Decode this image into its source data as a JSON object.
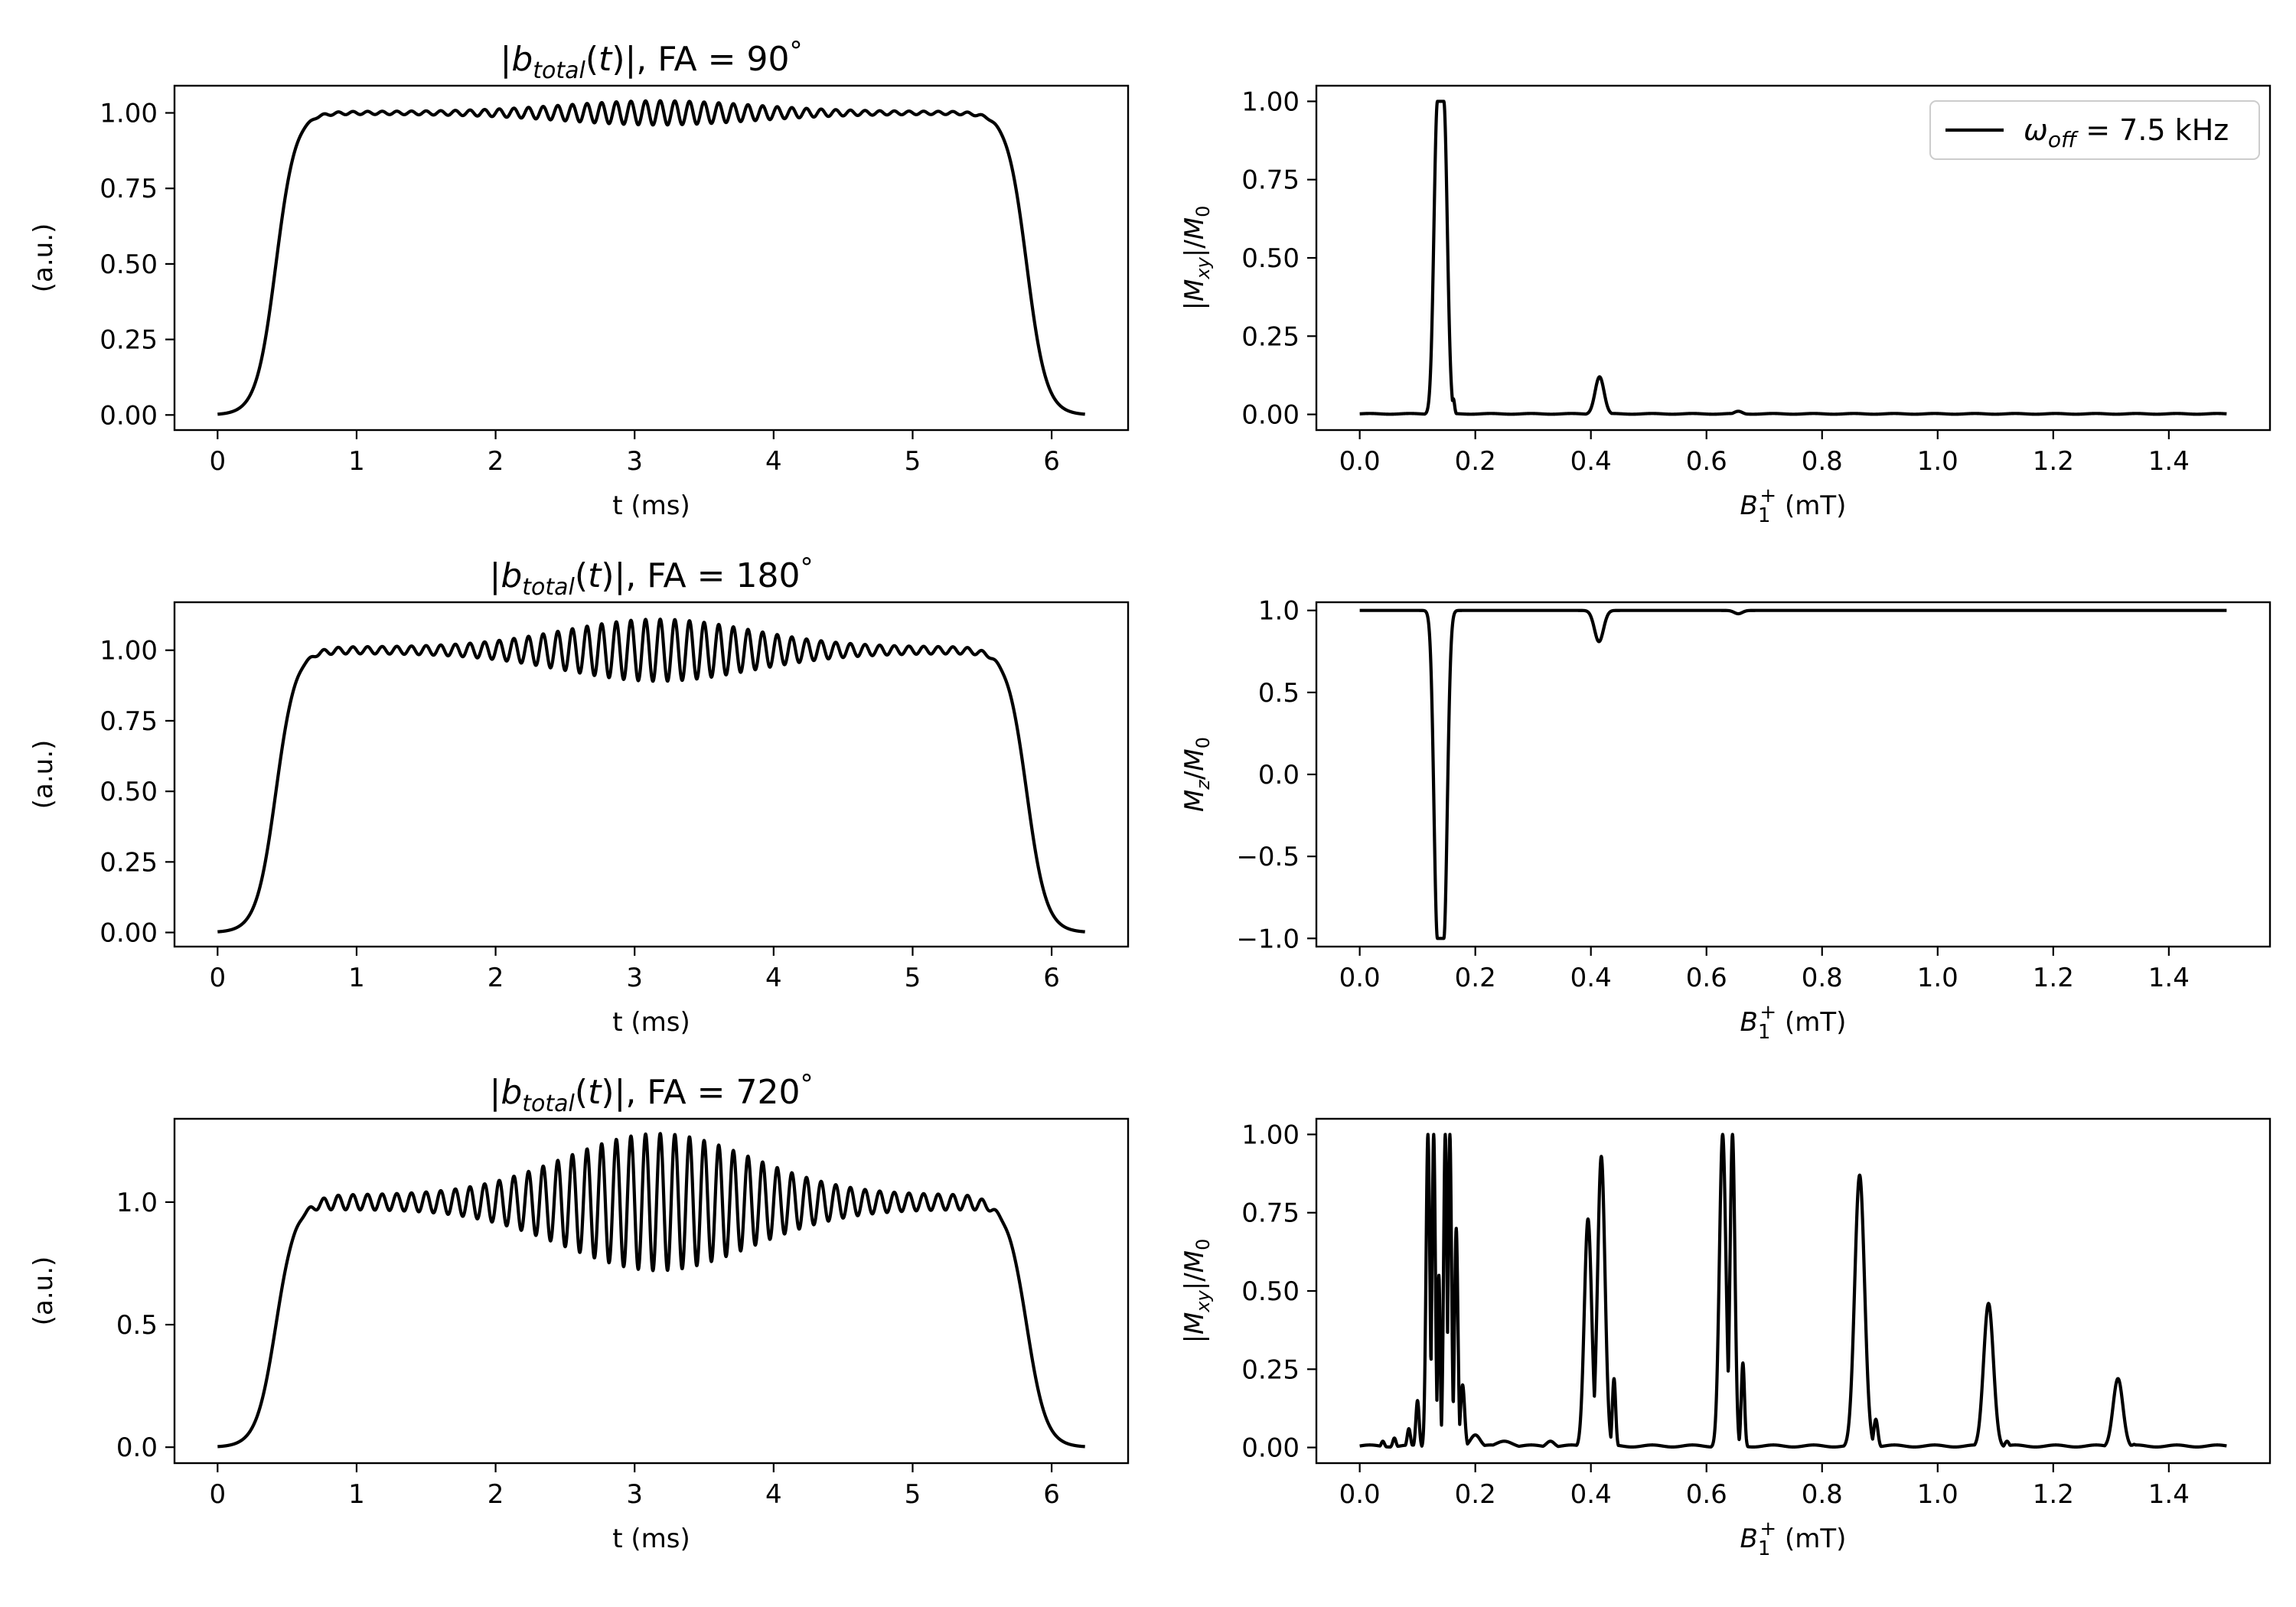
{
  "chart_data": [
    {
      "type": "line",
      "title": "|b_total(t)|, FA = 90°",
      "title_math": {
        "pre": "|b",
        "sub": "total",
        "mid": "(t)|, FA = ",
        "value": "90",
        "deg": "°"
      },
      "xlabel": "t (ms)",
      "ylabel": "(a.u.)",
      "xlim": [
        -0.31,
        6.55
      ],
      "ylim": [
        -0.05,
        1.09
      ],
      "xticks": [
        0,
        1,
        2,
        3,
        4,
        5,
        6
      ],
      "xtick_labels": [
        "0",
        "1",
        "2",
        "3",
        "4",
        "5",
        "6"
      ],
      "yticks": [
        0,
        0.25,
        0.5,
        0.75,
        1.0
      ],
      "ytick_labels": [
        "0.00",
        "0.25",
        "0.50",
        "0.75",
        "1.00"
      ],
      "series": [
        {
          "name": "|b_total(t)|",
          "generator": "pulse",
          "fa": 90,
          "t_end": 6.24,
          "rise_mid": 0.42,
          "fall_mid": 5.82,
          "plateau": 1.0,
          "ripple_base": 0.005,
          "ripple_peak": 0.04,
          "ripple_freq": 9.5
        }
      ]
    },
    {
      "type": "line",
      "title": "",
      "xlabel": "B1+ (mT)",
      "xlabel_math": {
        "pre": "B",
        "sub": "1",
        "sup": "+",
        "post": " (mT)"
      },
      "ylabel": "|Mxy|/M0",
      "ylabel_math": {
        "pre": "|M",
        "sub": "xy",
        "post": "|/M",
        "sub2": "0"
      },
      "xlim": [
        -0.075,
        1.575
      ],
      "ylim": [
        -0.05,
        1.05
      ],
      "xticks": [
        0,
        0.2,
        0.4,
        0.6,
        0.8,
        1.0,
        1.2,
        1.4
      ],
      "xtick_labels": [
        "0.0",
        "0.2",
        "0.4",
        "0.6",
        "0.8",
        "1.0",
        "1.2",
        "1.4"
      ],
      "yticks": [
        0,
        0.25,
        0.5,
        0.75,
        1.0
      ],
      "ytick_labels": [
        "0.00",
        "0.25",
        "0.50",
        "0.75",
        "1.00"
      ],
      "legend": {
        "label": "ω_off = 7.5 kHz",
        "math": {
          "pre": "ω",
          "sub": "off",
          "post": " = 7.5 kHz"
        },
        "loc": "upper right"
      },
      "series": [
        {
          "name": "|Mxy|/M0",
          "generator": "profile_xy",
          "x_max": 1.5,
          "baseline": 0.003,
          "peaks": [
            {
              "x": 0.127,
              "y": 0.08,
              "w": 0.003
            },
            {
              "x": 0.14,
              "y": 1.0,
              "w": 0.0085,
              "flat": 0.011
            },
            {
              "x": 0.162,
              "y": 0.05,
              "w": 0.003
            },
            {
              "x": 0.415,
              "y": 0.12,
              "w": 0.011
            },
            {
              "x": 0.655,
              "y": 0.01,
              "w": 0.01
            }
          ]
        }
      ]
    },
    {
      "type": "line",
      "title": "|b_total(t)|, FA = 180°",
      "title_math": {
        "pre": "|b",
        "sub": "total",
        "mid": "(t)|, FA = ",
        "value": "180",
        "deg": "°"
      },
      "xlabel": "t (ms)",
      "ylabel": "(a.u.)",
      "xlim": [
        -0.31,
        6.55
      ],
      "ylim": [
        -0.05,
        1.17
      ],
      "xticks": [
        0,
        1,
        2,
        3,
        4,
        5,
        6
      ],
      "xtick_labels": [
        "0",
        "1",
        "2",
        "3",
        "4",
        "5",
        "6"
      ],
      "yticks": [
        0,
        0.25,
        0.5,
        0.75,
        1.0
      ],
      "ytick_labels": [
        "0.00",
        "0.25",
        "0.50",
        "0.75",
        "1.00"
      ],
      "series": [
        {
          "name": "|b_total(t)|",
          "generator": "pulse",
          "fa": 180,
          "t_end": 6.24,
          "rise_mid": 0.42,
          "fall_mid": 5.82,
          "plateau": 1.0,
          "ripple_base": 0.012,
          "ripple_peak": 0.11,
          "ripple_freq": 9.5
        }
      ]
    },
    {
      "type": "line",
      "title": "",
      "xlabel": "B1+ (mT)",
      "xlabel_math": {
        "pre": "B",
        "sub": "1",
        "sup": "+",
        "post": " (mT)"
      },
      "ylabel": "Mz/M0",
      "ylabel_math": {
        "pre": "M",
        "sub": "z",
        "post": "/M",
        "sub2": "0"
      },
      "xlim": [
        -0.075,
        1.575
      ],
      "ylim": [
        -1.05,
        1.05
      ],
      "xticks": [
        0,
        0.2,
        0.4,
        0.6,
        0.8,
        1.0,
        1.2,
        1.4
      ],
      "xtick_labels": [
        "0.0",
        "0.2",
        "0.4",
        "0.6",
        "0.8",
        "1.0",
        "1.2",
        "1.4"
      ],
      "yticks": [
        -1.0,
        -0.5,
        0,
        0.5,
        1.0
      ],
      "ytick_labels": [
        "−1.0",
        "−0.5",
        "0.0",
        "0.5",
        "1.0"
      ],
      "series": [
        {
          "name": "Mz/M0",
          "generator": "profile_z",
          "x_max": 1.5,
          "dips": [
            {
              "x": 0.14,
              "depth": 2.0,
              "w": 0.0085,
              "flat": 0.011
            },
            {
              "x": 0.414,
              "depth": 0.19,
              "w": 0.011
            },
            {
              "x": 0.655,
              "depth": 0.02,
              "w": 0.01
            }
          ]
        }
      ]
    },
    {
      "type": "line",
      "title": "|b_total(t)|, FA = 720°",
      "title_math": {
        "pre": "|b",
        "sub": "total",
        "mid": "(t)|, FA = ",
        "value": "720",
        "deg": "°"
      },
      "xlabel": "t (ms)",
      "ylabel": "(a.u.)",
      "xlim": [
        -0.31,
        6.55
      ],
      "ylim": [
        -0.065,
        1.34
      ],
      "xticks": [
        0,
        1,
        2,
        3,
        4,
        5,
        6
      ],
      "xtick_labels": [
        "0",
        "1",
        "2",
        "3",
        "4",
        "5",
        "6"
      ],
      "yticks": [
        0,
        0.5,
        1.0
      ],
      "ytick_labels": [
        "0.0",
        "0.5",
        "1.0"
      ],
      "series": [
        {
          "name": "|b_total(t)|",
          "generator": "pulse",
          "fa": 720,
          "t_end": 6.24,
          "rise_mid": 0.42,
          "fall_mid": 5.82,
          "plateau": 1.0,
          "ripple_base": 0.03,
          "ripple_peak": 0.28,
          "ripple_freq": 9.5
        }
      ]
    },
    {
      "type": "line",
      "title": "",
      "xlabel": "B1+ (mT)",
      "xlabel_math": {
        "pre": "B",
        "sub": "1",
        "sup": "+",
        "post": " (mT)"
      },
      "ylabel": "|Mxy|/M0",
      "ylabel_math": {
        "pre": "|M",
        "sub": "xy",
        "post": "|/M",
        "sub2": "0"
      },
      "xlim": [
        -0.075,
        1.575
      ],
      "ylim": [
        -0.05,
        1.05
      ],
      "xticks": [
        0,
        0.2,
        0.4,
        0.6,
        0.8,
        1.0,
        1.2,
        1.4
      ],
      "xtick_labels": [
        "0.0",
        "0.2",
        "0.4",
        "0.6",
        "0.8",
        "1.0",
        "1.2",
        "1.4"
      ],
      "yticks": [
        0,
        0.25,
        0.5,
        0.75,
        1.0
      ],
      "ytick_labels": [
        "0.00",
        "0.25",
        "0.50",
        "0.75",
        "1.00"
      ],
      "series": [
        {
          "name": "|Mxy|/M0",
          "generator": "profile_xy",
          "x_max": 1.5,
          "baseline": 0.008,
          "peaks": [
            {
              "x": 0.04,
              "y": 0.02,
              "w": 0.004
            },
            {
              "x": 0.06,
              "y": 0.03,
              "w": 0.004
            },
            {
              "x": 0.085,
              "y": 0.06,
              "w": 0.004
            },
            {
              "x": 0.1,
              "y": 0.15,
              "w": 0.004
            },
            {
              "x": 0.118,
              "y": 1.0,
              "w": 0.0045
            },
            {
              "x": 0.128,
              "y": 1.0,
              "w": 0.004
            },
            {
              "x": 0.137,
              "y": 0.55,
              "w": 0.003
            },
            {
              "x": 0.148,
              "y": 1.0,
              "w": 0.004
            },
            {
              "x": 0.156,
              "y": 1.0,
              "w": 0.004
            },
            {
              "x": 0.167,
              "y": 0.7,
              "w": 0.004
            },
            {
              "x": 0.178,
              "y": 0.2,
              "w": 0.005
            },
            {
              "x": 0.2,
              "y": 0.04,
              "w": 0.012
            },
            {
              "x": 0.25,
              "y": 0.02,
              "w": 0.02
            },
            {
              "x": 0.33,
              "y": 0.02,
              "w": 0.01
            },
            {
              "x": 0.395,
              "y": 0.73,
              "w": 0.009
            },
            {
              "x": 0.418,
              "y": 0.93,
              "w": 0.009
            },
            {
              "x": 0.44,
              "y": 0.22,
              "w": 0.004
            },
            {
              "x": 0.628,
              "y": 1.0,
              "w": 0.008
            },
            {
              "x": 0.645,
              "y": 1.0,
              "w": 0.006
            },
            {
              "x": 0.663,
              "y": 0.27,
              "w": 0.004
            },
            {
              "x": 0.865,
              "y": 0.87,
              "w": 0.012
            },
            {
              "x": 0.893,
              "y": 0.09,
              "w": 0.005
            },
            {
              "x": 1.088,
              "y": 0.46,
              "w": 0.012
            },
            {
              "x": 1.12,
              "y": 0.02,
              "w": 0.005
            },
            {
              "x": 1.312,
              "y": 0.22,
              "w": 0.012
            },
            {
              "x": 1.34,
              "y": 0.01,
              "w": 0.005
            }
          ]
        }
      ]
    }
  ]
}
